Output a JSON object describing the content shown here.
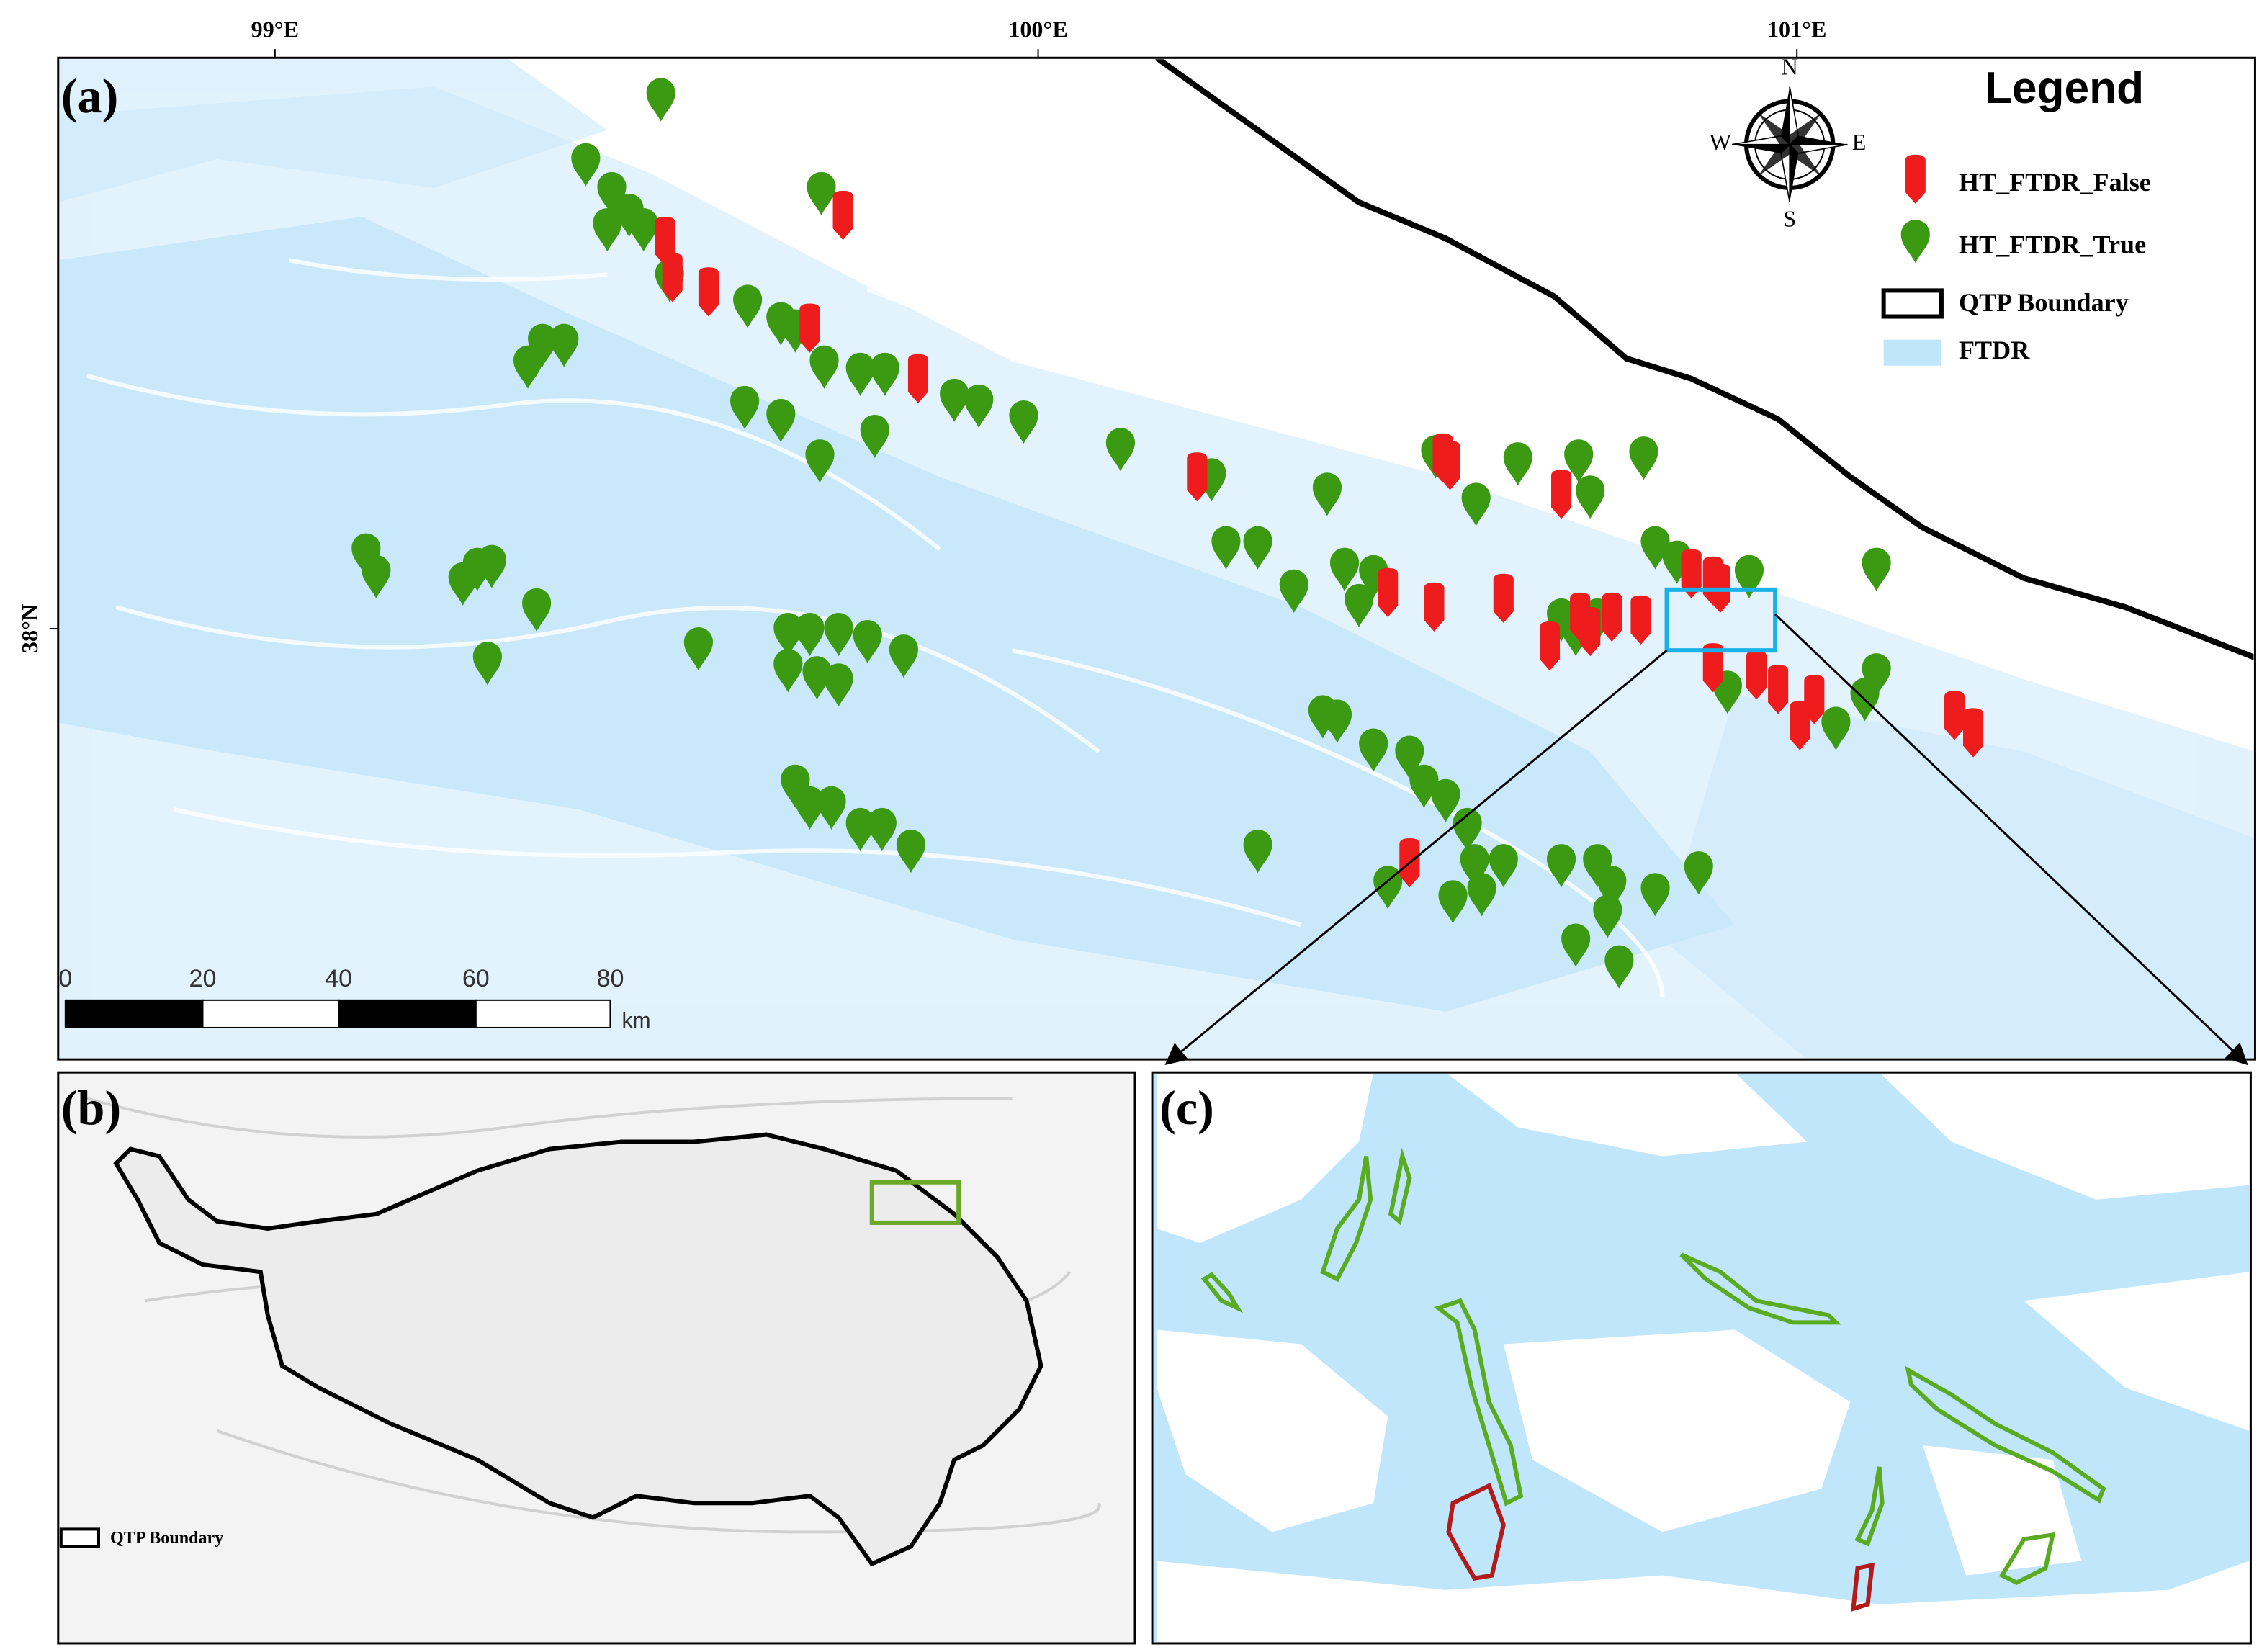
{
  "panels": {
    "a": {
      "label": "(a)",
      "lon_labels": [
        "99°E",
        "100°E",
        "101°E"
      ],
      "lat_labels": [
        "38°N"
      ],
      "compass": {
        "n": "N",
        "s": "S",
        "e": "E",
        "w": "W"
      },
      "legend": {
        "title": "Legend",
        "items": [
          "HT_FTDR_False",
          "HT_FTDR_True",
          "QTP Boundary",
          "FTDR"
        ]
      },
      "scale_bar": {
        "ticks": [
          0,
          20,
          40,
          60,
          80
        ],
        "unit": "km"
      }
    },
    "b": {
      "label": "(b)",
      "legend": "QTP Boundary"
    },
    "c": {
      "label": "(c)"
    }
  }
}
